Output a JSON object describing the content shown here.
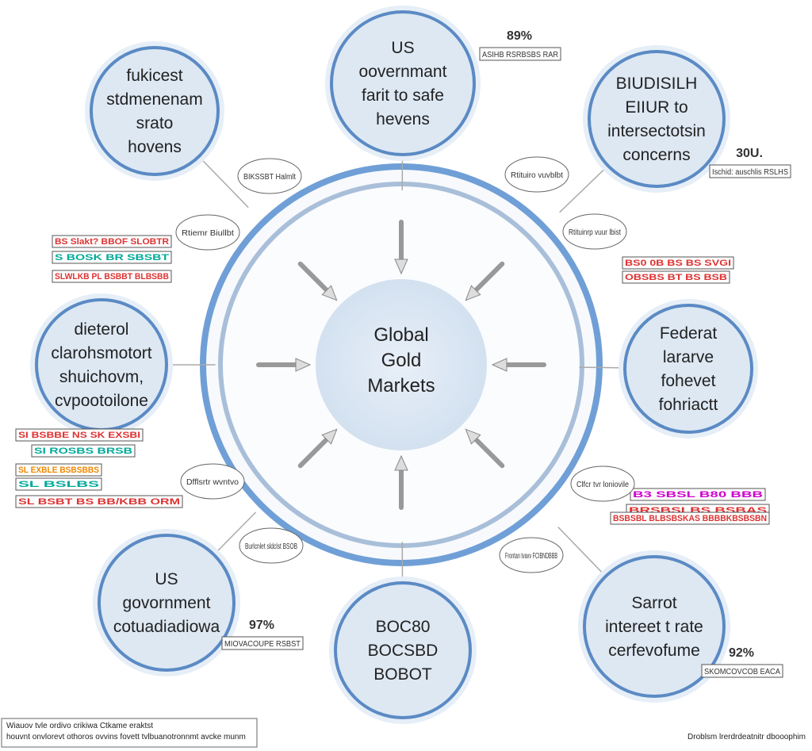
{
  "center": {
    "lines": [
      "Global",
      "Gold",
      "Markets"
    ]
  },
  "nodes": [
    {
      "lines": [
        "fukicest",
        "stdmenenam",
        "srato",
        "hovens"
      ]
    },
    {
      "lines": [
        "US",
        "oovernmant",
        "farit to safe",
        "hevens"
      ]
    },
    {
      "lines": [
        "BIUDISILH",
        "EIIUR to",
        "intersectotsin",
        "concerns"
      ]
    },
    {
      "lines": [
        "Federat",
        "lararve",
        "fohevet",
        "fohriactt"
      ]
    },
    {
      "lines": [
        "Sarrot",
        "intereet t rate",
        "cerfevofume"
      ]
    },
    {
      "lines": [
        "BOC80",
        "BOCSBD",
        "BOBOT"
      ]
    },
    {
      "lines": [
        "US",
        "govornment",
        "cotuadiadiowa"
      ]
    },
    {
      "lines": [
        "dieterol",
        "clarohsmotort",
        "shuichovm,",
        "cvpootoilone"
      ]
    }
  ],
  "stats": [
    {
      "value": "89%",
      "label": "ASIHB RSRBSBS RAR"
    },
    {
      "value": "30U.",
      "label": "Ischid: auschlis RSLHS"
    },
    {
      "value": "92%",
      "label": "SKOMCOVCOB EACA"
    },
    {
      "value": "97%",
      "label": "MIOVACOUPE RSBST"
    }
  ],
  "tags": [
    "BS Slakt? BBOF SLOBTR",
    "S BOSK BR SBSBT",
    "SLWLKB PL BSBBT BLBSBB",
    "SI BSBBE NS SK EXSBI",
    "SI ROSBS BRSB",
    "SL EXBLE BSBSBBS",
    "SL BSLBS",
    "SL BSBT BS BB/KBB ORM",
    "B3 SBSL B80 BBB",
    "BRSBSLBS BSBAS",
    "BS0 0B BS BS SVGI",
    "BSBSBL BLBSBSKAS BBBBKBSBSBN",
    "OBSBS BT BS BSB"
  ],
  "bubbles": [
    "BIKSSBT Halmlt",
    "Rtiemr Biullbt",
    "Rtituiro vuvblbt",
    "Rtituinrp vuur lbist",
    "Dfflsrtr wvntvo",
    "Frontan tvavv FCIBNDBBB",
    "Burlcnlet sldclst BSOB",
    "Clfcr tvr loniovile"
  ],
  "footer": {
    "left": [
      "Wiauov tvle ordivo crikiwa Ctkame eraktst",
      "houvnt onvlorevt othoros ovvins fovett tvlbuanotronnmt avcke munm"
    ],
    "right": "Droblsm lrerdrdeatnitr dbooophim"
  }
}
